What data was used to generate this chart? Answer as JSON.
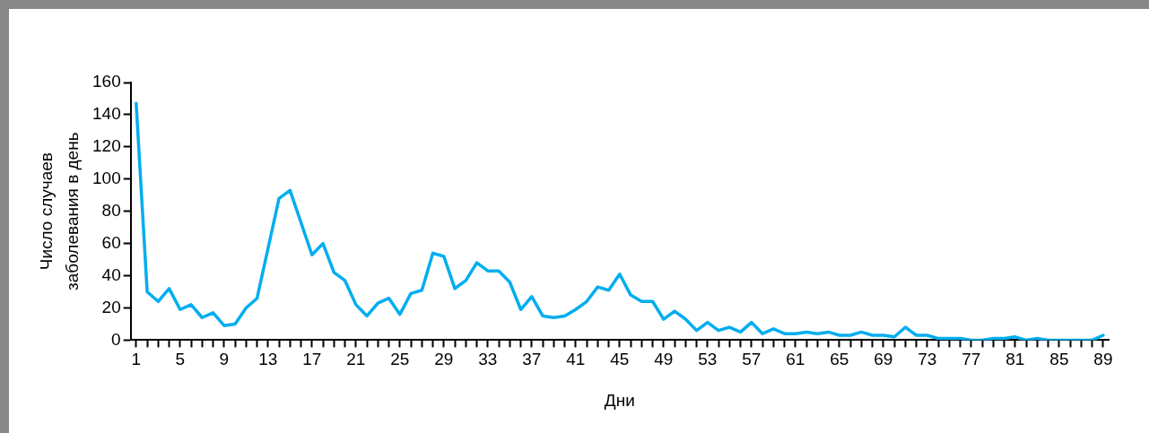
{
  "chart_data": {
    "type": "line",
    "xlabel": "Дни",
    "ylabel": "Число случаев\nзаболевания в день",
    "categories": [
      "1",
      null,
      null,
      null,
      "5",
      null,
      null,
      null,
      "9",
      null,
      null,
      null,
      "13",
      null,
      null,
      null,
      "17",
      null,
      null,
      null,
      "21",
      null,
      null,
      null,
      "25",
      null,
      null,
      null,
      "29",
      null,
      null,
      null,
      "33",
      null,
      null,
      null,
      "37",
      null,
      null,
      null,
      "41",
      null,
      null,
      null,
      "45",
      null,
      null,
      null,
      "49",
      null,
      null,
      null,
      "53",
      null,
      null,
      null,
      "57",
      null,
      null,
      null,
      "61",
      null,
      null,
      null,
      "65",
      null,
      null,
      null,
      "69",
      null,
      null,
      null,
      "73",
      null,
      null,
      null,
      "77",
      null,
      null,
      null,
      "81",
      null,
      null,
      null,
      "85",
      null,
      null,
      null,
      "89"
    ],
    "series": [
      {
        "color": "#00aeef",
        "values": [
          147,
          30,
          24,
          32,
          19,
          22,
          14,
          17,
          9,
          10,
          20,
          26,
          57,
          88,
          93,
          73,
          53,
          60,
          42,
          37,
          22,
          15,
          23,
          26,
          16,
          29,
          31,
          54,
          52,
          32,
          37,
          48,
          43,
          43,
          36,
          19,
          27,
          15,
          14,
          15,
          19,
          24,
          33,
          31,
          41,
          28,
          24,
          24,
          13,
          18,
          13,
          6,
          11,
          6,
          8,
          5,
          11,
          4,
          7,
          4,
          4,
          5,
          4,
          5,
          3,
          3,
          5,
          3,
          3,
          2,
          8,
          3,
          3,
          1,
          1,
          1,
          0,
          0,
          1,
          1,
          2,
          0,
          1,
          0,
          0,
          0,
          0,
          0,
          3
        ]
      }
    ],
    "ylim": [
      0,
      160
    ],
    "yticks": [
      0,
      20,
      40,
      60,
      80,
      100,
      120,
      140,
      160
    ],
    "grid": false,
    "legend": false,
    "marker": "none",
    "line_style": "solid"
  }
}
